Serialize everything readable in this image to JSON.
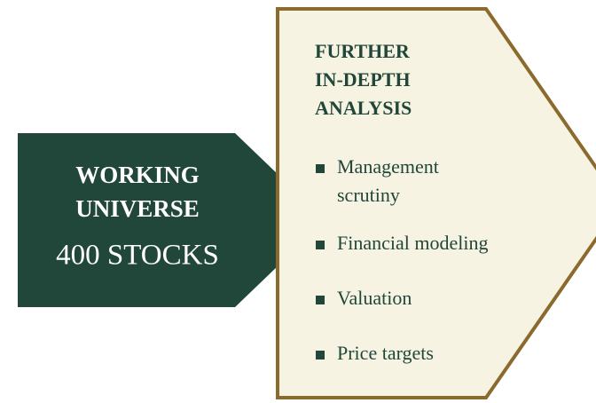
{
  "left": {
    "title_lines": [
      "WORKING",
      "UNIVERSE"
    ],
    "subtitle": "400 STOCKS"
  },
  "right": {
    "title_lines": [
      "FURTHER",
      "IN-DEPTH",
      "ANALYSIS"
    ],
    "bullets": [
      [
        "Management",
        "scrutiny"
      ],
      [
        "Financial modeling"
      ],
      [
        "Valuation"
      ],
      [
        "Price targets"
      ]
    ]
  }
}
